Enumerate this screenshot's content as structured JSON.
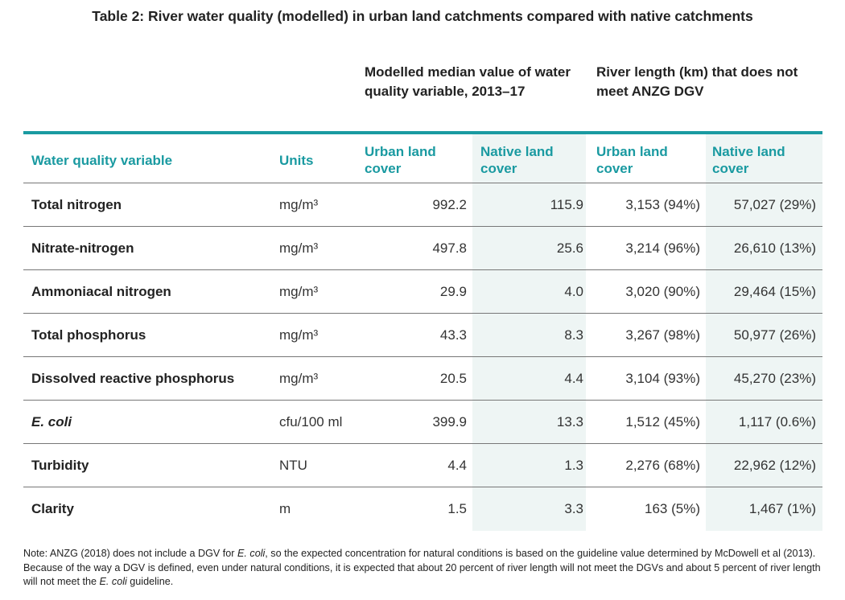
{
  "title": "Table 2: River water quality (modelled) in urban land catchments compared with native catchments",
  "group_headers": {
    "modelled": "Modelled median value of water quality variable, 2013–17",
    "river_length": "River length (km) that does not meet ANZG DGV"
  },
  "columns": {
    "variable": "Water quality variable",
    "units": "Units",
    "urban_median": "Urban land cover",
    "native_median": "Native land cover",
    "urban_length": "Urban land cover",
    "native_length": "Native land cover"
  },
  "rows": [
    {
      "variable": "Total nitrogen",
      "units": "mg/m³",
      "urban_median": "992.2",
      "native_median": "115.9",
      "urban_length": "3,153 (94%)",
      "native_length": "57,027 (29%)"
    },
    {
      "variable": "Nitrate-nitrogen",
      "units": "mg/m³",
      "urban_median": "497.8",
      "native_median": "25.6",
      "urban_length": "3,214 (96%)",
      "native_length": "26,610 (13%)"
    },
    {
      "variable": "Ammoniacal nitrogen",
      "units": "mg/m³",
      "urban_median": "29.9",
      "native_median": "4.0",
      "urban_length": "3,020 (90%)",
      "native_length": "29,464 (15%)"
    },
    {
      "variable": "Total phosphorus",
      "units": "mg/m³",
      "urban_median": "43.3",
      "native_median": "8.3",
      "urban_length": "3,267 (98%)",
      "native_length": "50,977 (26%)"
    },
    {
      "variable": "Dissolved reactive phosphorus",
      "units": "mg/m³",
      "urban_median": "20.5",
      "native_median": "4.4",
      "urban_length": "3,104 (93%)",
      "native_length": "45,270 (23%)"
    },
    {
      "variable": "E. coli",
      "units": "cfu/100 ml",
      "urban_median": "399.9",
      "native_median": "13.3",
      "urban_length": "1,512 (45%)",
      "native_length": "1,117 (0.6%)"
    },
    {
      "variable": "Turbidity",
      "units": "NTU",
      "urban_median": "4.4",
      "native_median": "1.3",
      "urban_length": "2,276 (68%)",
      "native_length": "22,962 (12%)"
    },
    {
      "variable": "Clarity",
      "units": "m",
      "urban_median": "1.5",
      "native_median": "3.3",
      "urban_length": "163 (5%)",
      "native_length": "1,467 (1%)"
    }
  ],
  "note": {
    "p1": "Note: ANZG (2018) does not include a DGV for ",
    "ecoli1": "E. coli",
    "p2": ", so the expected concentration for natural conditions is based on the guideline value determined by McDowell et al (2013). Because of the way a DGV is defined, even under natural conditions, it is expected that about 20 percent of river length will not meet the DGVs and about 5 percent of river length will not meet the ",
    "ecoli2": "E. coli",
    "p3": " guideline."
  },
  "colors": {
    "accent": "#1a9aa1",
    "shade": "#eef5f4"
  }
}
